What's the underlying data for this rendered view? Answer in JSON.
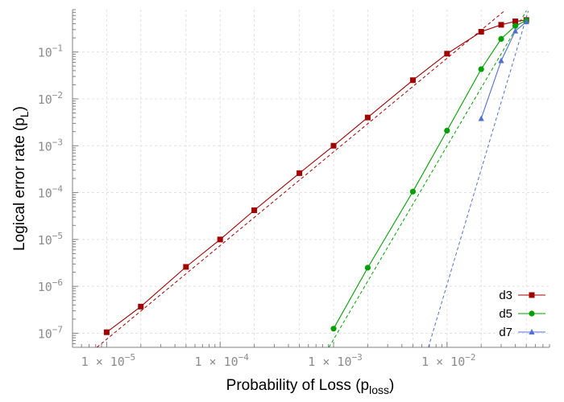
{
  "chart_data": {
    "type": "line",
    "xlabel": "Probability of Loss (p",
    "xlabel_sub": "loss",
    "xlabel_close": ")",
    "ylabel": "Logical error rate (p",
    "ylabel_sub": "L",
    "ylabel_close": ")",
    "x_scale": "log",
    "y_scale": "log",
    "xlim": [
      5e-06,
      0.08
    ],
    "ylim": [
      5e-08,
      0.8
    ],
    "grid": true,
    "legend_position": "bottom-right",
    "x_ticks": [
      {
        "value": 1e-05,
        "base": "1 × 10",
        "exp": "−5"
      },
      {
        "value": 0.0001,
        "base": "1 × 10",
        "exp": "−4"
      },
      {
        "value": 0.001,
        "base": "1 × 10",
        "exp": "−3"
      },
      {
        "value": 0.01,
        "base": "1 × 10",
        "exp": "−2"
      }
    ],
    "y_ticks": [
      {
        "value": 1e-07,
        "base": "10",
        "exp": "−7"
      },
      {
        "value": 1e-06,
        "base": "10",
        "exp": "−6"
      },
      {
        "value": 1e-05,
        "base": "10",
        "exp": "−5"
      },
      {
        "value": 0.0001,
        "base": "10",
        "exp": "−4"
      },
      {
        "value": 0.001,
        "base": "10",
        "exp": "−3"
      },
      {
        "value": 0.01,
        "base": "10",
        "exp": "−2"
      },
      {
        "value": 0.1,
        "base": "10",
        "exp": "−1"
      }
    ],
    "series": [
      {
        "name": "d3",
        "color": "#a00000",
        "marker": "square",
        "points": [
          [
            1e-05,
            1.05e-07
          ],
          [
            2e-05,
            3.7e-07
          ],
          [
            5e-05,
            2.6e-06
          ],
          [
            0.0001,
            1e-05
          ],
          [
            0.0002,
            4.2e-05
          ],
          [
            0.0005,
            0.00026
          ],
          [
            0.001,
            0.001
          ],
          [
            0.002,
            0.004
          ],
          [
            0.005,
            0.025
          ],
          [
            0.01,
            0.092
          ],
          [
            0.02,
            0.27
          ],
          [
            0.03,
            0.38
          ],
          [
            0.04,
            0.45
          ],
          [
            0.05,
            0.48
          ]
        ],
        "fit": [
          [
            8.2e-06,
            5e-08
          ],
          [
            0.032,
            0.75
          ]
        ]
      },
      {
        "name": "d5",
        "color": "#00a000",
        "marker": "circle",
        "points": [
          [
            0.001,
            1.25e-07
          ],
          [
            0.002,
            2.5e-06
          ],
          [
            0.005,
            0.000105
          ],
          [
            0.01,
            0.0021
          ],
          [
            0.02,
            0.043
          ],
          [
            0.03,
            0.19
          ],
          [
            0.04,
            0.36
          ],
          [
            0.05,
            0.47
          ]
        ],
        "fit": [
          [
            0.00091,
            5e-08
          ],
          [
            0.05,
            0.75
          ]
        ]
      },
      {
        "name": "d7",
        "color": "#5070d0",
        "marker": "triangle",
        "points": [
          [
            0.02,
            0.0038
          ],
          [
            0.03,
            0.065
          ],
          [
            0.04,
            0.28
          ],
          [
            0.05,
            0.44
          ]
        ],
        "fit": [
          [
            0.00685,
            5e-08
          ],
          [
            0.052,
            0.75
          ]
        ]
      }
    ]
  }
}
